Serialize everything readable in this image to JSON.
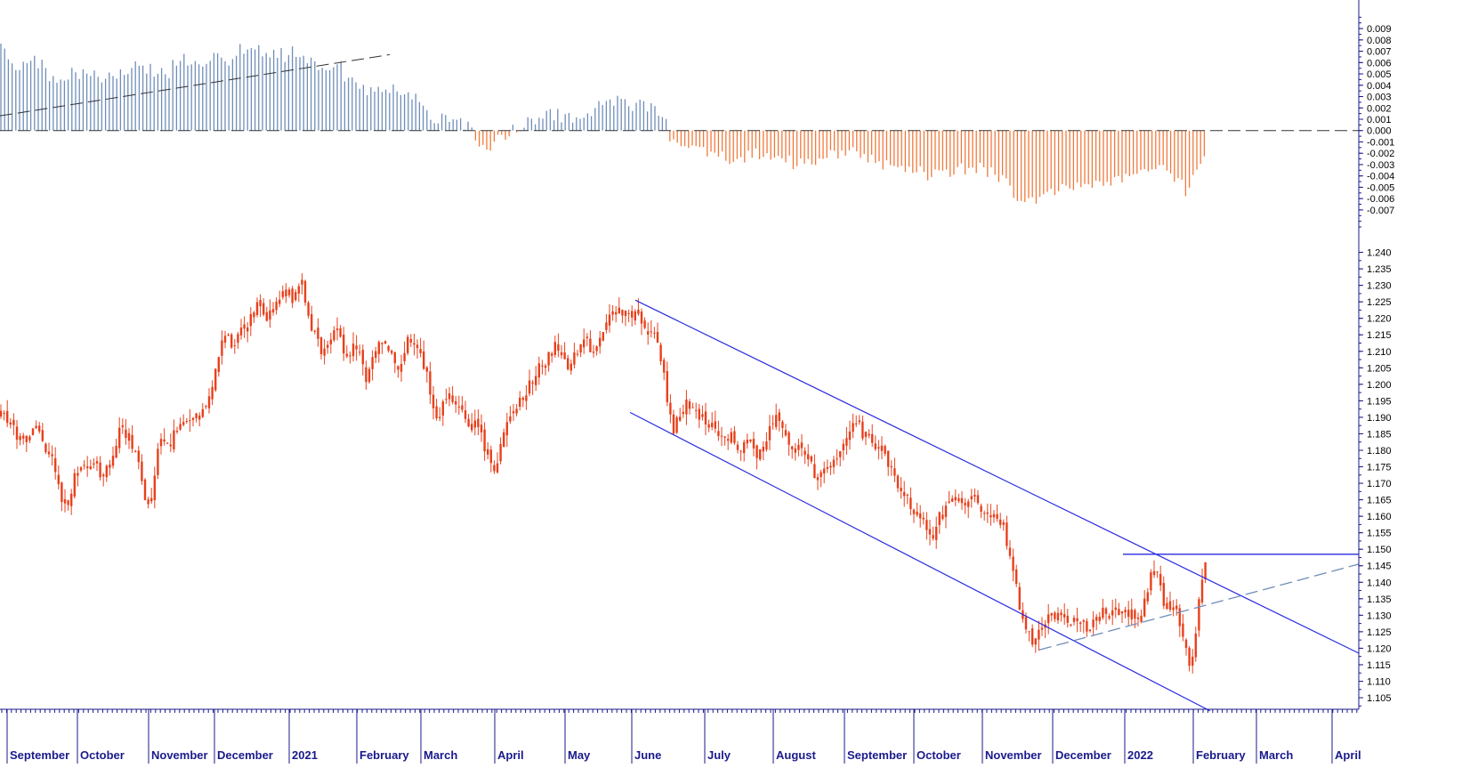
{
  "colors": {
    "background": "#ffffff",
    "price": "#e8401c",
    "hist_positive": "#6f8db8",
    "hist_negative": "#f07a3c",
    "channel": "#2a2ae0",
    "dashed_support": "#6f8db8",
    "axis": "#1a1a8c"
  },
  "chart_data": [
    {
      "type": "bar",
      "panel": "oscillator",
      "ylim": [
        -0.0085,
        0.0105
      ],
      "ytick_labels": [
        "0.009",
        "0.008",
        "0.007",
        "0.006",
        "0.005",
        "0.004",
        "0.003",
        "0.002",
        "0.001",
        "0.000",
        "-0.001",
        "-0.002",
        "-0.003",
        "-0.004",
        "-0.005",
        "-0.006",
        "-0.007"
      ],
      "ytick_values": [
        0.009,
        0.008,
        0.007,
        0.006,
        0.005,
        0.004,
        0.003,
        0.002,
        0.001,
        0.0,
        -0.001,
        -0.002,
        -0.003,
        -0.004,
        -0.005,
        -0.006,
        -0.007
      ],
      "histogram_anchors": [
        [
          0,
          0.0075
        ],
        [
          6,
          0.0068
        ],
        [
          15,
          0.0058
        ],
        [
          30,
          0.006
        ],
        [
          45,
          0.006
        ],
        [
          52,
          0.0052
        ],
        [
          60,
          0.0045
        ],
        [
          70,
          0.0049
        ],
        [
          85,
          0.005
        ],
        [
          95,
          0.0049
        ],
        [
          110,
          0.0052
        ],
        [
          115,
          0.0044
        ],
        [
          125,
          0.0046
        ],
        [
          140,
          0.0054
        ],
        [
          150,
          0.0058
        ],
        [
          160,
          0.0055
        ],
        [
          175,
          0.0052
        ],
        [
          182,
          0.0058
        ],
        [
          190,
          0.0052
        ],
        [
          200,
          0.0064
        ],
        [
          210,
          0.0063
        ],
        [
          218,
          0.006
        ],
        [
          228,
          0.0058
        ],
        [
          240,
          0.0064
        ],
        [
          250,
          0.0067
        ],
        [
          256,
          0.0062
        ],
        [
          262,
          0.0068
        ],
        [
          270,
          0.0073
        ],
        [
          278,
          0.0068
        ],
        [
          285,
          0.0075
        ],
        [
          295,
          0.0066
        ],
        [
          310,
          0.007
        ],
        [
          320,
          0.0066
        ],
        [
          330,
          0.0072
        ],
        [
          340,
          0.0068
        ],
        [
          350,
          0.0062
        ],
        [
          360,
          0.0052
        ],
        [
          370,
          0.0058
        ],
        [
          380,
          0.0064
        ],
        [
          388,
          0.0048
        ],
        [
          400,
          0.004
        ],
        [
          410,
          0.0036
        ],
        [
          420,
          0.0036
        ],
        [
          440,
          0.0036
        ],
        [
          450,
          0.0034
        ],
        [
          460,
          0.0032
        ],
        [
          470,
          0.0032
        ],
        [
          476,
          0.0022
        ],
        [
          484,
          0.0014
        ],
        [
          492,
          0.0008
        ],
        [
          500,
          0.0012
        ],
        [
          510,
          0.001
        ],
        [
          520,
          0.0008
        ],
        [
          528,
          0.0002
        ],
        [
          532,
          -0.0001
        ],
        [
          540,
          -0.001
        ],
        [
          550,
          -0.0014
        ],
        [
          558,
          -0.0011
        ],
        [
          566,
          -0.0004
        ],
        [
          574,
          0.0002
        ],
        [
          582,
          0.0004
        ],
        [
          592,
          0.0008
        ],
        [
          602,
          0.001
        ],
        [
          612,
          0.0013
        ],
        [
          622,
          0.0014
        ],
        [
          632,
          0.0012
        ],
        [
          642,
          0.0012
        ],
        [
          652,
          0.0016
        ],
        [
          662,
          0.0013
        ],
        [
          672,
          0.002
        ],
        [
          680,
          0.0024
        ],
        [
          690,
          0.0026
        ],
        [
          700,
          0.0025
        ],
        [
          712,
          0.0022
        ],
        [
          722,
          0.0021
        ],
        [
          732,
          0.0019
        ],
        [
          742,
          0.0016
        ],
        [
          748,
          0.0013
        ],
        [
          752,
          -0.0002
        ],
        [
          756,
          -0.0011
        ],
        [
          770,
          -0.0008
        ],
        [
          780,
          -0.0012
        ],
        [
          800,
          -0.002
        ],
        [
          820,
          -0.0024
        ],
        [
          840,
          -0.0022
        ],
        [
          860,
          -0.002
        ],
        [
          880,
          -0.0026
        ],
        [
          900,
          -0.003
        ],
        [
          915,
          -0.003
        ],
        [
          930,
          -0.0022
        ],
        [
          950,
          -0.0018
        ],
        [
          970,
          -0.002
        ],
        [
          990,
          -0.0028
        ],
        [
          1010,
          -0.0032
        ],
        [
          1030,
          -0.0036
        ],
        [
          1050,
          -0.004
        ],
        [
          1070,
          -0.0036
        ],
        [
          1090,
          -0.0032
        ],
        [
          1110,
          -0.0036
        ],
        [
          1125,
          -0.0042
        ],
        [
          1140,
          -0.0055
        ],
        [
          1155,
          -0.0062
        ],
        [
          1165,
          -0.0064
        ],
        [
          1175,
          -0.0056
        ],
        [
          1190,
          -0.0052
        ],
        [
          1210,
          -0.0052
        ],
        [
          1230,
          -0.0048
        ],
        [
          1250,
          -0.0044
        ],
        [
          1270,
          -0.0044
        ],
        [
          1280,
          -0.0036
        ],
        [
          1290,
          -0.0036
        ],
        [
          1300,
          -0.003
        ],
        [
          1310,
          -0.0038
        ],
        [
          1320,
          -0.004
        ],
        [
          1328,
          -0.0048
        ],
        [
          1334,
          -0.0055
        ],
        [
          1340,
          -0.0046
        ],
        [
          1348,
          -0.0034
        ],
        [
          1356,
          -0.0025
        ]
      ],
      "trend_line_dashed": {
        "x_from": 0,
        "x_to": 438,
        "y_from": 0.0013,
        "y_to": 0.0067
      },
      "zero_line_dashed": true
    },
    {
      "type": "candlestick",
      "panel": "price",
      "ylim": [
        1.1015,
        1.2415
      ],
      "ytick_labels": [
        "1.240",
        "1.235",
        "1.230",
        "1.225",
        "1.220",
        "1.215",
        "1.210",
        "1.205",
        "1.200",
        "1.195",
        "1.190",
        "1.185",
        "1.180",
        "1.175",
        "1.170",
        "1.165",
        "1.160",
        "1.155",
        "1.150",
        "1.145",
        "1.140",
        "1.135",
        "1.130",
        "1.125",
        "1.120",
        "1.115",
        "1.110",
        "1.105"
      ],
      "ytick_values": [
        1.24,
        1.235,
        1.23,
        1.225,
        1.22,
        1.215,
        1.21,
        1.205,
        1.2,
        1.195,
        1.19,
        1.185,
        1.18,
        1.175,
        1.17,
        1.165,
        1.16,
        1.155,
        1.15,
        1.145,
        1.14,
        1.135,
        1.13,
        1.125,
        1.12,
        1.115,
        1.11,
        1.105
      ],
      "close_anchors": [
        [
          0,
          1.192
        ],
        [
          8,
          1.188
        ],
        [
          18,
          1.185
        ],
        [
          28,
          1.182
        ],
        [
          40,
          1.188
        ],
        [
          50,
          1.18
        ],
        [
          60,
          1.176
        ],
        [
          68,
          1.166
        ],
        [
          76,
          1.163
        ],
        [
          85,
          1.173
        ],
        [
          95,
          1.175
        ],
        [
          105,
          1.178
        ],
        [
          115,
          1.172
        ],
        [
          125,
          1.175
        ],
        [
          135,
          1.186
        ],
        [
          145,
          1.184
        ],
        [
          155,
          1.176
        ],
        [
          163,
          1.165
        ],
        [
          170,
          1.164
        ],
        [
          180,
          1.185
        ],
        [
          190,
          1.182
        ],
        [
          200,
          1.186
        ],
        [
          210,
          1.188
        ],
        [
          220,
          1.189
        ],
        [
          232,
          1.194
        ],
        [
          240,
          1.2
        ],
        [
          250,
          1.215
        ],
        [
          260,
          1.213
        ],
        [
          270,
          1.215
        ],
        [
          280,
          1.219
        ],
        [
          290,
          1.224
        ],
        [
          300,
          1.22
        ],
        [
          310,
          1.224
        ],
        [
          320,
          1.228
        ],
        [
          330,
          1.226
        ],
        [
          338,
          1.232
        ],
        [
          345,
          1.222
        ],
        [
          352,
          1.216
        ],
        [
          360,
          1.21
        ],
        [
          370,
          1.214
        ],
        [
          380,
          1.215
        ],
        [
          390,
          1.209
        ],
        [
          402,
          1.212
        ],
        [
          412,
          1.199
        ],
        [
          420,
          1.21
        ],
        [
          430,
          1.212
        ],
        [
          440,
          1.21
        ],
        [
          448,
          1.205
        ],
        [
          458,
          1.214
        ],
        [
          468,
          1.212
        ],
        [
          478,
          1.205
        ],
        [
          485,
          1.194
        ],
        [
          492,
          1.188
        ],
        [
          500,
          1.195
        ],
        [
          510,
          1.196
        ],
        [
          520,
          1.192
        ],
        [
          528,
          1.185
        ],
        [
          536,
          1.19
        ],
        [
          546,
          1.18
        ],
        [
          556,
          1.173
        ],
        [
          566,
          1.185
        ],
        [
          576,
          1.19
        ],
        [
          586,
          1.196
        ],
        [
          596,
          1.2
        ],
        [
          606,
          1.205
        ],
        [
          616,
          1.208
        ],
        [
          626,
          1.212
        ],
        [
          636,
          1.205
        ],
        [
          646,
          1.21
        ],
        [
          656,
          1.214
        ],
        [
          666,
          1.21
        ],
        [
          676,
          1.215
        ],
        [
          686,
          1.22
        ],
        [
          696,
          1.222
        ],
        [
          706,
          1.222
        ],
        [
          716,
          1.22
        ],
        [
          726,
          1.217
        ],
        [
          736,
          1.214
        ],
        [
          744,
          1.207
        ],
        [
          750,
          1.194
        ],
        [
          756,
          1.186
        ],
        [
          764,
          1.192
        ],
        [
          772,
          1.194
        ],
        [
          782,
          1.191
        ],
        [
          792,
          1.189
        ],
        [
          802,
          1.186
        ],
        [
          812,
          1.183
        ],
        [
          822,
          1.185
        ],
        [
          832,
          1.18
        ],
        [
          842,
          1.182
        ],
        [
          852,
          1.179
        ],
        [
          860,
          1.183
        ],
        [
          870,
          1.189
        ],
        [
          880,
          1.188
        ],
        [
          890,
          1.18
        ],
        [
          900,
          1.182
        ],
        [
          910,
          1.176
        ],
        [
          920,
          1.171
        ],
        [
          930,
          1.174
        ],
        [
          940,
          1.178
        ],
        [
          950,
          1.183
        ],
        [
          960,
          1.189
        ],
        [
          968,
          1.186
        ],
        [
          978,
          1.182
        ],
        [
          990,
          1.181
        ],
        [
          1000,
          1.174
        ],
        [
          1010,
          1.17
        ],
        [
          1018,
          1.166
        ],
        [
          1028,
          1.16
        ],
        [
          1038,
          1.158
        ],
        [
          1048,
          1.154
        ],
        [
          1056,
          1.16
        ],
        [
          1066,
          1.163
        ],
        [
          1076,
          1.165
        ],
        [
          1086,
          1.164
        ],
        [
          1096,
          1.166
        ],
        [
          1106,
          1.161
        ],
        [
          1116,
          1.16
        ],
        [
          1128,
          1.158
        ],
        [
          1138,
          1.143
        ],
        [
          1146,
          1.133
        ],
        [
          1154,
          1.126
        ],
        [
          1162,
          1.121
        ],
        [
          1170,
          1.126
        ],
        [
          1180,
          1.13
        ],
        [
          1190,
          1.129
        ],
        [
          1200,
          1.128
        ],
        [
          1210,
          1.13
        ],
        [
          1220,
          1.126
        ],
        [
          1230,
          1.128
        ],
        [
          1240,
          1.131
        ],
        [
          1250,
          1.13
        ],
        [
          1260,
          1.132
        ],
        [
          1270,
          1.131
        ],
        [
          1280,
          1.13
        ],
        [
          1288,
          1.134
        ],
        [
          1294,
          1.146
        ],
        [
          1300,
          1.144
        ],
        [
          1308,
          1.134
        ],
        [
          1316,
          1.131
        ],
        [
          1324,
          1.131
        ],
        [
          1330,
          1.123
        ],
        [
          1336,
          1.114
        ],
        [
          1342,
          1.12
        ],
        [
          1348,
          1.138
        ],
        [
          1354,
          1.147
        ],
        [
          1358,
          1.145
        ]
      ],
      "channel_upper": [
        [
          714,
          1.2255
        ],
        [
          1527,
          1.1185
        ]
      ],
      "channel_lower": [
        [
          708,
          1.1915
        ],
        [
          1360,
          1.101
        ]
      ],
      "resistance_hline": {
        "x_from": 1262,
        "x_to": 1527,
        "y": 1.1485
      },
      "support_dashed": [
        [
          1168,
          1.1195
        ],
        [
          1527,
          1.1455
        ]
      ]
    }
  ],
  "x_axis": {
    "months": [
      {
        "label": "September",
        "x": 8
      },
      {
        "label": "October",
        "x": 87
      },
      {
        "label": "November",
        "x": 167
      },
      {
        "label": "December",
        "x": 241
      },
      {
        "label": "2021",
        "x": 325
      },
      {
        "label": "February",
        "x": 401
      },
      {
        "label": "March",
        "x": 473
      },
      {
        "label": "April",
        "x": 556
      },
      {
        "label": "May",
        "x": 635
      },
      {
        "label": "June",
        "x": 710
      },
      {
        "label": "July",
        "x": 792
      },
      {
        "label": "August",
        "x": 869
      },
      {
        "label": "September",
        "x": 949
      },
      {
        "label": "October",
        "x": 1027
      },
      {
        "label": "November",
        "x": 1104
      },
      {
        "label": "December",
        "x": 1183
      },
      {
        "label": "2022",
        "x": 1264
      },
      {
        "label": "February",
        "x": 1341
      },
      {
        "label": "March",
        "x": 1412
      },
      {
        "label": "April",
        "x": 1497
      }
    ]
  }
}
